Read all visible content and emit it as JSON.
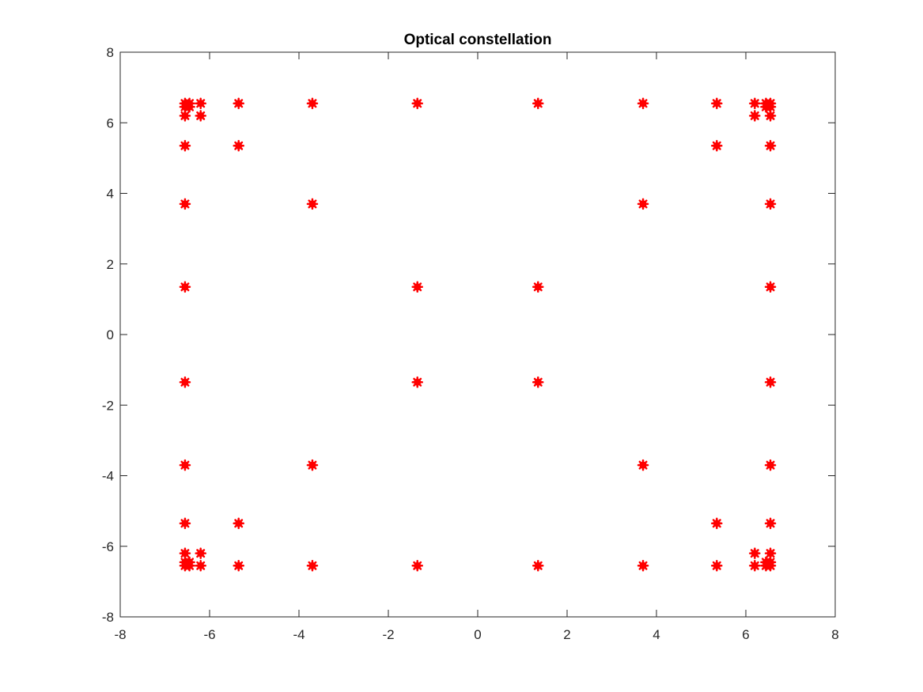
{
  "chart_data": {
    "type": "scatter",
    "title": "Optical constellation",
    "xlabel": "",
    "ylabel": "",
    "xlim": [
      -8,
      8
    ],
    "ylim": [
      -8,
      8
    ],
    "xticks": [
      -8,
      -6,
      -4,
      -2,
      0,
      2,
      4,
      6,
      8
    ],
    "yticks": [
      -8,
      -6,
      -4,
      -2,
      0,
      2,
      4,
      6,
      8
    ],
    "grid": false,
    "marker_color": "#ff0000",
    "series": [
      {
        "points": [
          [
            -6.55,
            6.55
          ],
          [
            -6.45,
            6.55
          ],
          [
            -6.2,
            6.55
          ],
          [
            -5.35,
            6.55
          ],
          [
            -3.7,
            6.55
          ],
          [
            -1.35,
            6.55
          ],
          [
            1.35,
            6.55
          ],
          [
            3.7,
            6.55
          ],
          [
            5.35,
            6.55
          ],
          [
            6.2,
            6.55
          ],
          [
            6.45,
            6.55
          ],
          [
            6.55,
            6.55
          ],
          [
            -6.55,
            6.45
          ],
          [
            -6.45,
            6.45
          ],
          [
            6.45,
            6.45
          ],
          [
            6.55,
            6.45
          ],
          [
            -6.55,
            6.2
          ],
          [
            -6.2,
            6.2
          ],
          [
            6.2,
            6.2
          ],
          [
            6.55,
            6.2
          ],
          [
            -6.55,
            5.35
          ],
          [
            -5.35,
            5.35
          ],
          [
            5.35,
            5.35
          ],
          [
            6.55,
            5.35
          ],
          [
            -6.55,
            3.7
          ],
          [
            -3.7,
            3.7
          ],
          [
            3.7,
            3.7
          ],
          [
            6.55,
            3.7
          ],
          [
            -6.55,
            1.35
          ],
          [
            -1.35,
            1.35
          ],
          [
            1.35,
            1.35
          ],
          [
            6.55,
            1.35
          ],
          [
            -6.55,
            -1.35
          ],
          [
            -1.35,
            -1.35
          ],
          [
            1.35,
            -1.35
          ],
          [
            6.55,
            -1.35
          ],
          [
            -6.55,
            -3.7
          ],
          [
            -3.7,
            -3.7
          ],
          [
            3.7,
            -3.7
          ],
          [
            6.55,
            -3.7
          ],
          [
            -6.55,
            -5.35
          ],
          [
            -5.35,
            -5.35
          ],
          [
            5.35,
            -5.35
          ],
          [
            6.55,
            -5.35
          ],
          [
            -6.55,
            -6.2
          ],
          [
            -6.2,
            -6.2
          ],
          [
            6.2,
            -6.2
          ],
          [
            6.55,
            -6.2
          ],
          [
            -6.55,
            -6.45
          ],
          [
            -6.45,
            -6.45
          ],
          [
            6.45,
            -6.45
          ],
          [
            6.55,
            -6.45
          ],
          [
            -6.55,
            -6.55
          ],
          [
            -6.45,
            -6.55
          ],
          [
            -6.2,
            -6.55
          ],
          [
            -5.35,
            -6.55
          ],
          [
            -3.7,
            -6.55
          ],
          [
            -1.35,
            -6.55
          ],
          [
            1.35,
            -6.55
          ],
          [
            3.7,
            -6.55
          ],
          [
            5.35,
            -6.55
          ],
          [
            6.2,
            -6.55
          ],
          [
            6.45,
            -6.55
          ],
          [
            6.55,
            -6.55
          ]
        ]
      }
    ]
  }
}
